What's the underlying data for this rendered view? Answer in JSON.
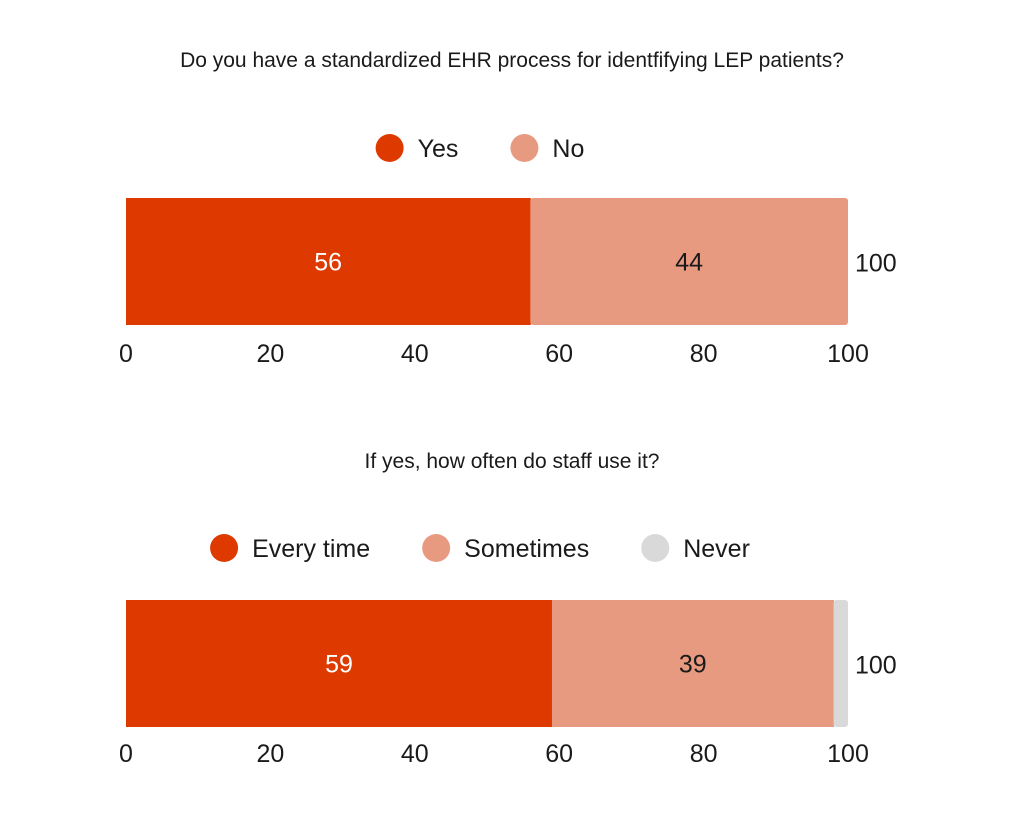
{
  "chart_data": [
    {
      "type": "bar",
      "orientation": "horizontal",
      "stacked": true,
      "title": "Do you have a standardized EHR process for identfifying LEP patients?",
      "series": [
        {
          "name": "Yes",
          "value": 56,
          "color": "#de3a00",
          "label_color": "#ffffff"
        },
        {
          "name": "No",
          "value": 44,
          "color": "#e89a80",
          "label_color": "#1a1a1a"
        }
      ],
      "total": "100",
      "xlim": [
        0,
        100
      ],
      "ticks": [
        "0",
        "20",
        "40",
        "60",
        "80",
        "100"
      ],
      "legend_position": "top-center",
      "grid": false
    },
    {
      "type": "bar",
      "orientation": "horizontal",
      "stacked": true,
      "title": "If yes, how often do staff use it?",
      "series": [
        {
          "name": "Every time",
          "value": 59,
          "color": "#de3a00",
          "label_color": "#ffffff"
        },
        {
          "name": "Sometimes",
          "value": 39,
          "color": "#e89a80",
          "label_color": "#1a1a1a"
        },
        {
          "name": "Never",
          "value": 2,
          "color": "#d9d9d9",
          "label_color": "#1a1a1a"
        }
      ],
      "total": "100",
      "xlim": [
        0,
        100
      ],
      "ticks": [
        "0",
        "20",
        "40",
        "60",
        "80",
        "100"
      ],
      "legend_position": "top-center",
      "grid": false
    }
  ]
}
